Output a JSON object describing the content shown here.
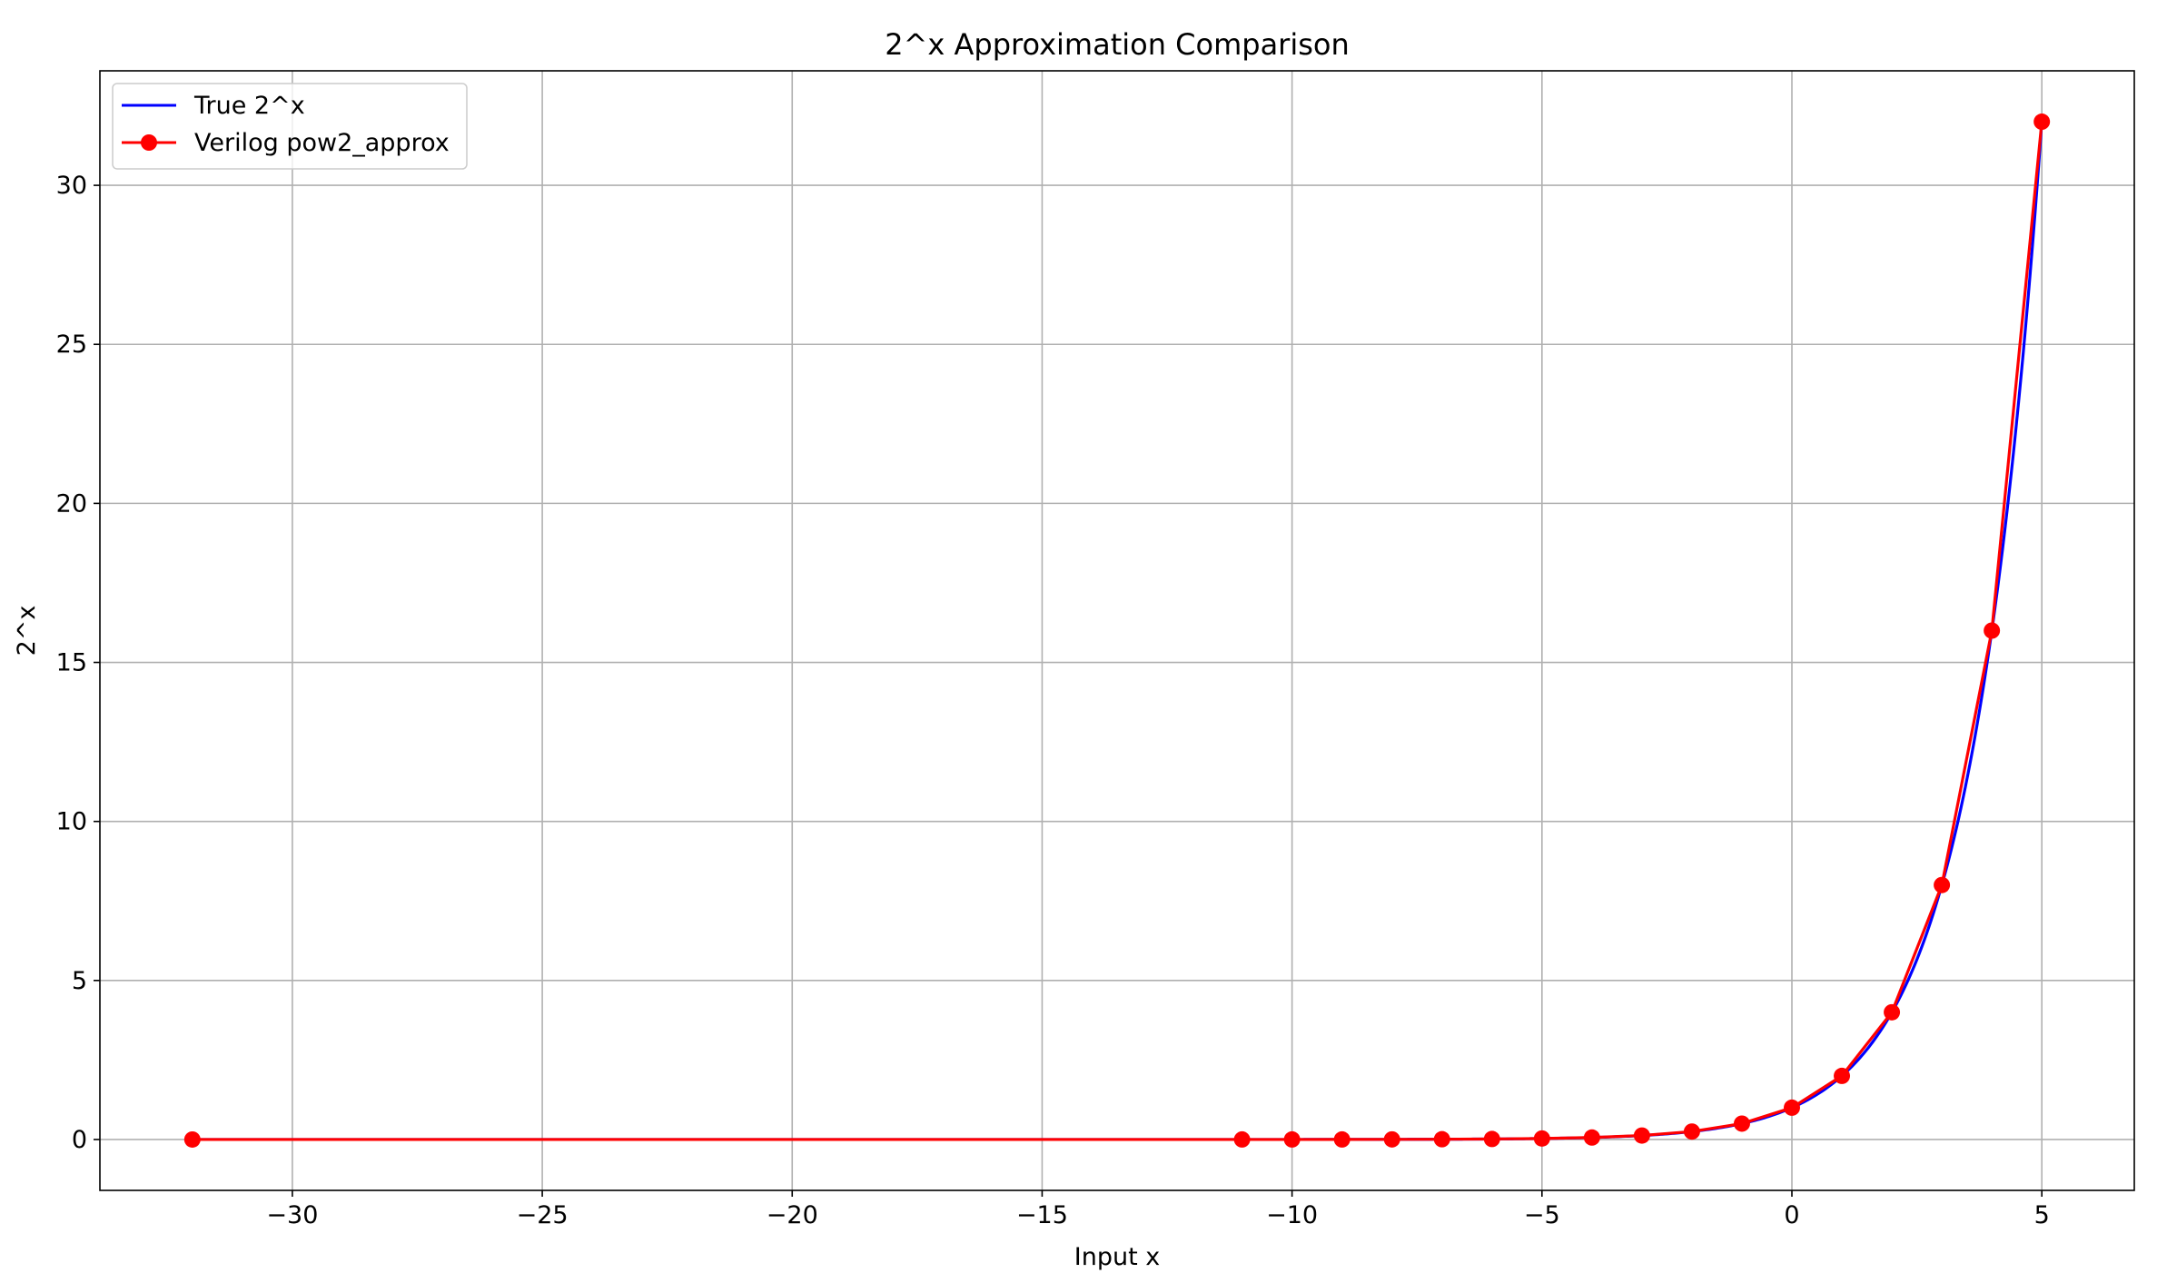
{
  "chart_data": {
    "type": "line",
    "title": "2^x Approximation Comparison",
    "xlabel": "Input x",
    "ylabel": "2^x",
    "xlim": [
      -33.85,
      6.85
    ],
    "ylim": [
      -1.6,
      33.6
    ],
    "xticks": [
      -30,
      -25,
      -20,
      -15,
      -10,
      -5,
      0,
      5
    ],
    "xtick_labels": [
      "−30",
      "−25",
      "−20",
      "−15",
      "−10",
      "−5",
      "0",
      "5"
    ],
    "yticks": [
      0,
      5,
      10,
      15,
      20,
      25,
      30
    ],
    "ytick_labels": [
      "0",
      "5",
      "10",
      "15",
      "20",
      "25",
      "30"
    ],
    "grid": true,
    "legend_position": "top-left",
    "series": [
      {
        "name": "True 2^x",
        "color": "#0000ff",
        "marker": "none",
        "kind": "smooth function 2^x",
        "x_range": [
          -32,
          5
        ]
      },
      {
        "name": "Verilog pow2_approx",
        "color": "#ff0000",
        "marker": "circle",
        "x": [
          -32,
          -11,
          -10,
          -9,
          -8,
          -7,
          -6,
          -5,
          -4,
          -3,
          -2,
          -1,
          0,
          1,
          2,
          3,
          4,
          5
        ],
        "y": [
          0,
          0.0005,
          0.001,
          0.002,
          0.004,
          0.008,
          0.016,
          0.031,
          0.0625,
          0.125,
          0.25,
          0.5,
          1,
          2,
          4,
          8,
          16,
          32
        ]
      }
    ]
  }
}
